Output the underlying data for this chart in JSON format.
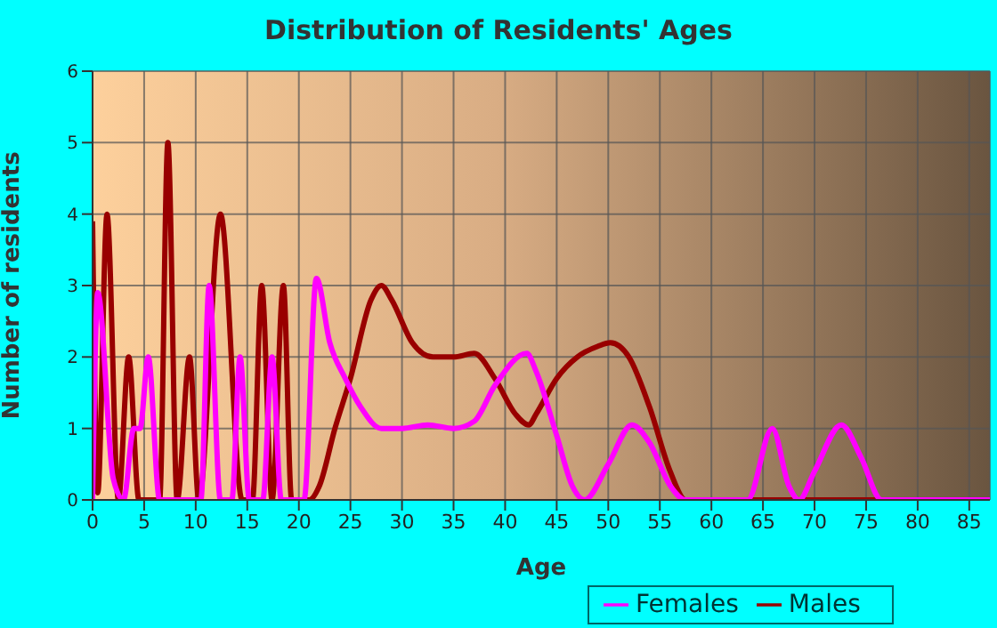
{
  "chart_data": {
    "type": "line",
    "title": "Distribution of Residents' Ages",
    "xlabel": "Age",
    "ylabel": "Number of residents",
    "xlim": [
      0,
      87
    ],
    "xticks": [
      0,
      5,
      10,
      15,
      20,
      25,
      30,
      35,
      40,
      45,
      50,
      55,
      60,
      65,
      70,
      75,
      80,
      85
    ],
    "ylim": [
      0,
      6
    ],
    "yticks": [
      0,
      1,
      2,
      3,
      4,
      5,
      6
    ],
    "grid": true,
    "legend": "bottom",
    "marker": "none",
    "line_style": "solid",
    "series": [
      {
        "name": "Males",
        "color": "#990000",
        "x": [
          0,
          0.5,
          1.4,
          2.5,
          3.5,
          4.5,
          6.5,
          7.3,
          8.2,
          9.4,
          10.3,
          12.4,
          14.5,
          15.5,
          16.4,
          17.4,
          18.5,
          19.3,
          21,
          22,
          23.5,
          25,
          27,
          28,
          29,
          31,
          33,
          35,
          37,
          39,
          41,
          42.3,
          43,
          45,
          47,
          49,
          50.2,
          52,
          54,
          56,
          57.5,
          87
        ],
        "values": [
          3.9,
          0.1,
          4,
          0,
          2,
          0,
          0,
          5,
          0,
          2,
          0,
          4,
          0,
          0,
          3,
          0,
          3,
          0,
          0,
          0.2,
          1,
          1.7,
          2.8,
          3,
          2.8,
          2.2,
          2,
          2,
          2.05,
          1.7,
          1.2,
          1.05,
          1.2,
          1.7,
          2,
          2.15,
          2.2,
          2,
          1.3,
          0.4,
          0,
          0
        ]
      },
      {
        "name": "Females",
        "color": "#ff00ff",
        "x": [
          0,
          0.5,
          2,
          3,
          4,
          4.6,
          5.4,
          6.5,
          10.5,
          11.3,
          12.4,
          13.5,
          14.3,
          15.2,
          16.5,
          17.4,
          18.3,
          20.5,
          21.7,
          23,
          24.5,
          26,
          28,
          30,
          32.5,
          35,
          37,
          39,
          42.1,
          43,
          45,
          46.5,
          47.7,
          50,
          52.3,
          54,
          56,
          57.5,
          63.5,
          65.9,
          67.5,
          68.5,
          70,
          72.6,
          74.5,
          76.5,
          87
        ],
        "values": [
          0,
          2.9,
          0.3,
          0,
          1,
          1,
          2,
          0,
          0,
          3,
          0,
          0,
          2,
          0,
          0,
          2,
          0,
          0,
          3.1,
          2.2,
          1.7,
          1.3,
          1,
          1,
          1.05,
          1,
          1.1,
          1.6,
          2.05,
          1.8,
          0.9,
          0.2,
          0,
          0.5,
          1.05,
          0.8,
          0.2,
          0,
          0,
          1,
          0.2,
          0,
          0.4,
          1.05,
          0.6,
          0,
          0
        ]
      }
    ]
  }
}
